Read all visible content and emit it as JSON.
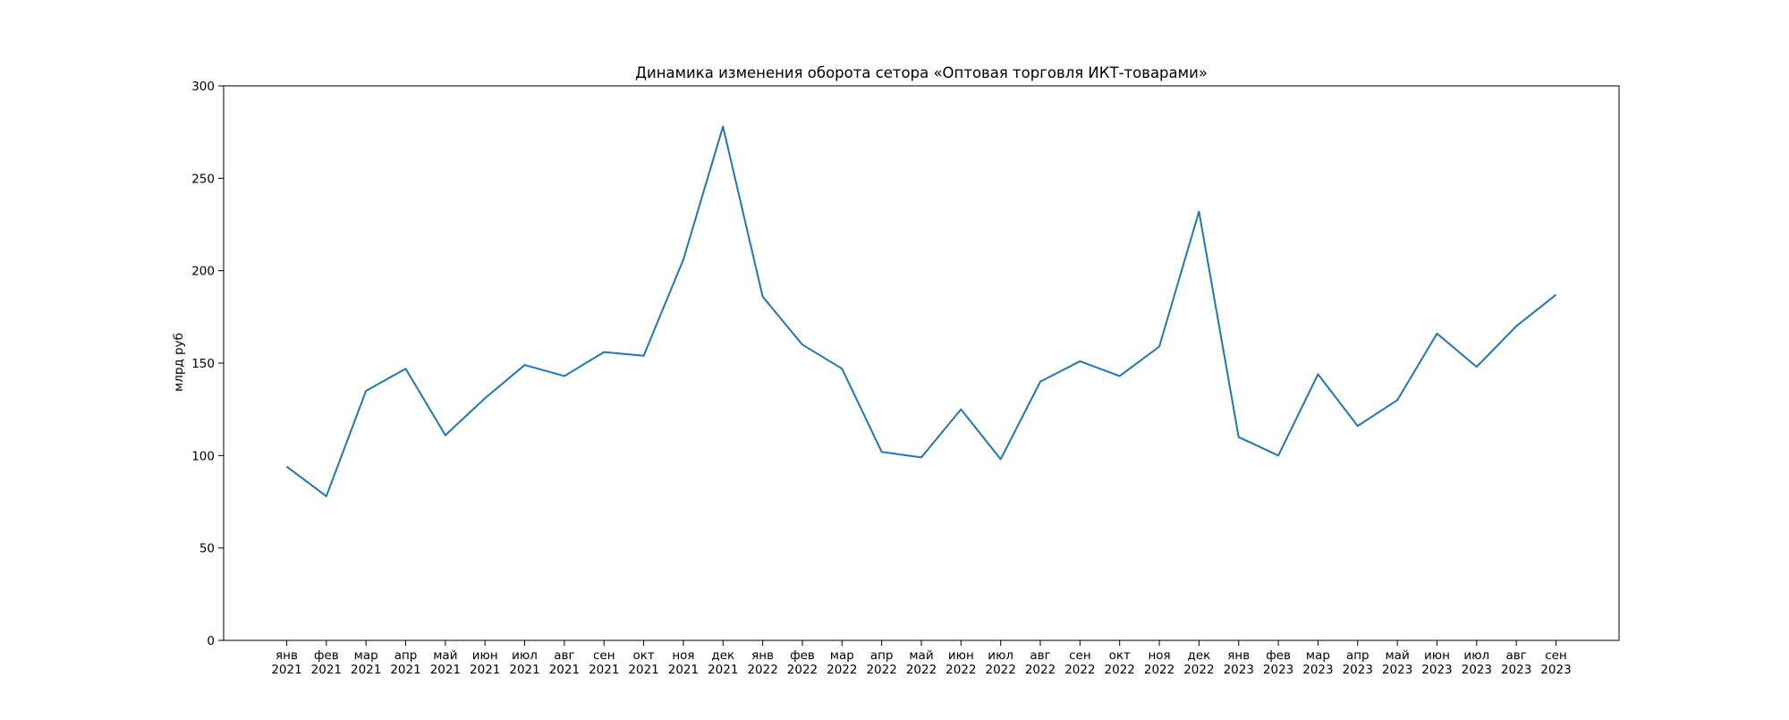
{
  "chart_data": {
    "type": "line",
    "title": "Динамика изменения оборота сетора «Оптовая торговля ИКТ-товарами»",
    "xlabel": "",
    "ylabel": "млрд руб",
    "ylim": [
      0,
      300
    ],
    "yticks": [
      0,
      50,
      100,
      150,
      200,
      250,
      300
    ],
    "grid": false,
    "categories": [
      {
        "month": "янв",
        "year": "2021"
      },
      {
        "month": "фев",
        "year": "2021"
      },
      {
        "month": "мар",
        "year": "2021"
      },
      {
        "month": "апр",
        "year": "2021"
      },
      {
        "month": "май",
        "year": "2021"
      },
      {
        "month": "июн",
        "year": "2021"
      },
      {
        "month": "июл",
        "year": "2021"
      },
      {
        "month": "авг",
        "year": "2021"
      },
      {
        "month": "сен",
        "year": "2021"
      },
      {
        "month": "окт",
        "year": "2021"
      },
      {
        "month": "ноя",
        "year": "2021"
      },
      {
        "month": "дек",
        "year": "2021"
      },
      {
        "month": "янв",
        "year": "2022"
      },
      {
        "month": "фев",
        "year": "2022"
      },
      {
        "month": "мар",
        "year": "2022"
      },
      {
        "month": "апр",
        "year": "2022"
      },
      {
        "month": "май",
        "year": "2022"
      },
      {
        "month": "июн",
        "year": "2022"
      },
      {
        "month": "июл",
        "year": "2022"
      },
      {
        "month": "авг",
        "year": "2022"
      },
      {
        "month": "сен",
        "year": "2022"
      },
      {
        "month": "окт",
        "year": "2022"
      },
      {
        "month": "ноя",
        "year": "2022"
      },
      {
        "month": "дек",
        "year": "2022"
      },
      {
        "month": "янв",
        "year": "2023"
      },
      {
        "month": "фев",
        "year": "2023"
      },
      {
        "month": "мар",
        "year": "2023"
      },
      {
        "month": "апр",
        "year": "2023"
      },
      {
        "month": "май",
        "year": "2023"
      },
      {
        "month": "июн",
        "year": "2023"
      },
      {
        "month": "июл",
        "year": "2023"
      },
      {
        "month": "авг",
        "year": "2023"
      },
      {
        "month": "сен",
        "year": "2023"
      }
    ],
    "series": [
      {
        "color": "#1f77b4",
        "values": [
          94,
          78,
          135,
          147,
          111,
          131,
          149,
          143,
          156,
          154,
          206,
          278,
          186,
          160,
          147,
          102,
          99,
          125,
          98,
          140,
          151,
          143,
          159,
          232,
          110,
          100,
          144,
          116,
          130,
          166,
          148,
          170,
          187
        ]
      }
    ]
  }
}
